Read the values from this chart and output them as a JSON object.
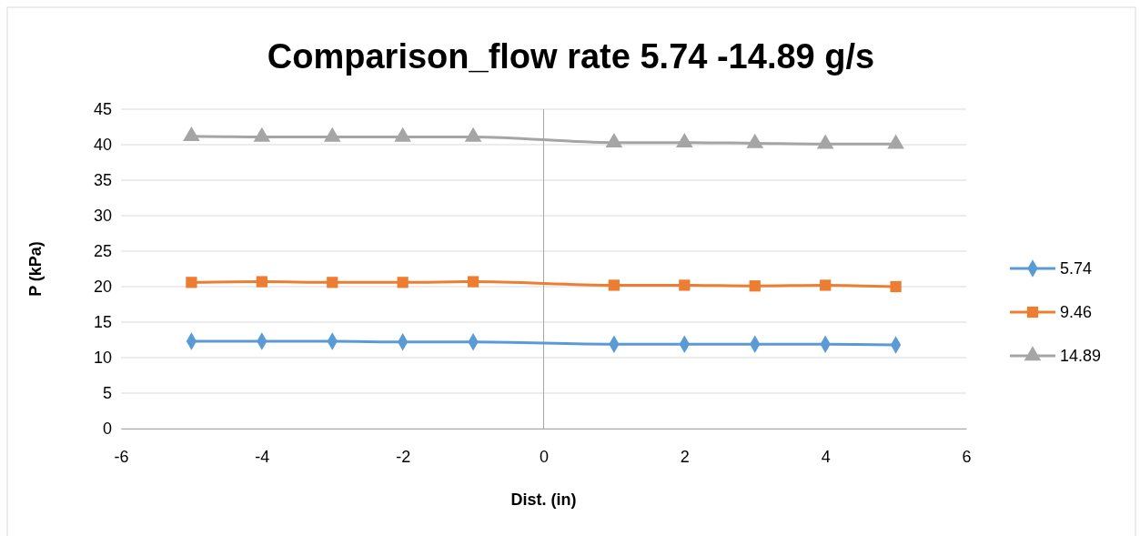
{
  "chart_data": {
    "type": "line",
    "title": "Comparison_flow rate 5.74 -14.89 g/s",
    "xlabel": "Dist. (in)",
    "ylabel": "P (kPa)",
    "x": [
      -5,
      -4,
      -3,
      -2,
      -1,
      1,
      2,
      3,
      4,
      5
    ],
    "series": [
      {
        "name": "5.74",
        "color": "#5b9bd5",
        "marker": "diamond",
        "values": [
          12.3,
          12.3,
          12.3,
          12.2,
          12.2,
          11.9,
          11.9,
          11.9,
          11.9,
          11.8
        ]
      },
      {
        "name": "9.46",
        "color": "#ed7d31",
        "marker": "square",
        "values": [
          20.6,
          20.7,
          20.6,
          20.6,
          20.7,
          20.2,
          20.2,
          20.1,
          20.2,
          20.0
        ]
      },
      {
        "name": "14.89",
        "color": "#a5a5a5",
        "marker": "triangle",
        "values": [
          41.2,
          41.1,
          41.1,
          41.1,
          41.1,
          40.3,
          40.3,
          40.2,
          40.1,
          40.1
        ]
      }
    ],
    "xlim": [
      -6,
      6
    ],
    "xticks": [
      -6,
      -4,
      -2,
      0,
      2,
      4,
      6
    ],
    "ylim": [
      0,
      45
    ],
    "yticks": [
      0,
      5,
      10,
      15,
      20,
      25,
      30,
      35,
      40,
      45
    ],
    "grid": "y",
    "legend": "right"
  }
}
